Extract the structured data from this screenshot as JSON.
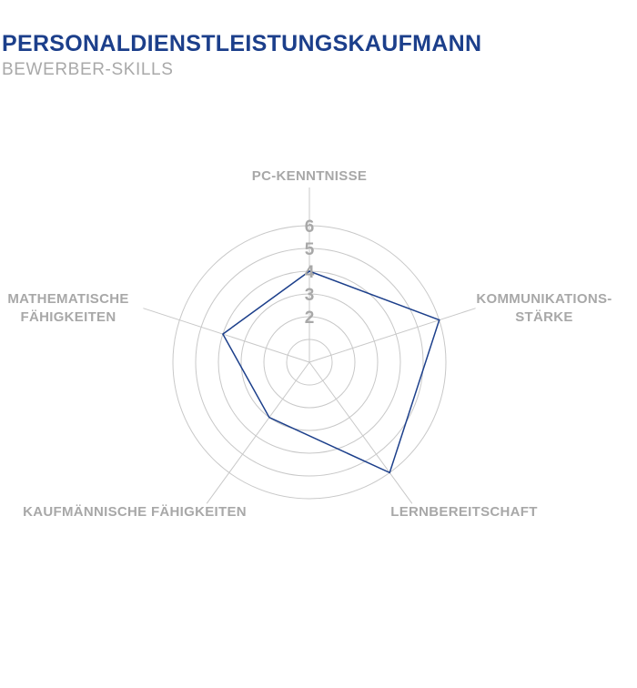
{
  "header": {
    "title": "PERSONALDIENSTLEISTUNGSKAUFMANN",
    "subtitle": "BEWERBER-SKILLS"
  },
  "colors": {
    "title": "#1c3f8b",
    "series_line": "#1c3f8b",
    "grid": "#c8c8c8",
    "labels": "#a8a8a8"
  },
  "chart_data": {
    "type": "radar",
    "title": "PERSONALDIENSTLEISTUNGSKAUFMANN",
    "subtitle": "BEWERBER-SKILLS",
    "categories": [
      "PC-KENNTNISSE",
      "KOMMUNIKATIONS-\nSTÄRKE",
      "LERNBEREITSCHAFT",
      "KAUFMÄNNISCHE FÄHIGKEITEN",
      "MATHEMATISCHE\nFÄHIGKEITEN"
    ],
    "series": [
      {
        "values": [
          4,
          6,
          6,
          3,
          4
        ]
      }
    ],
    "range": [
      0,
      6
    ],
    "rings": [
      1,
      2,
      3,
      4,
      5,
      6
    ],
    "tick_labels": [
      "2",
      "3",
      "4",
      "5",
      "6"
    ],
    "grid": true,
    "legend": "none"
  }
}
